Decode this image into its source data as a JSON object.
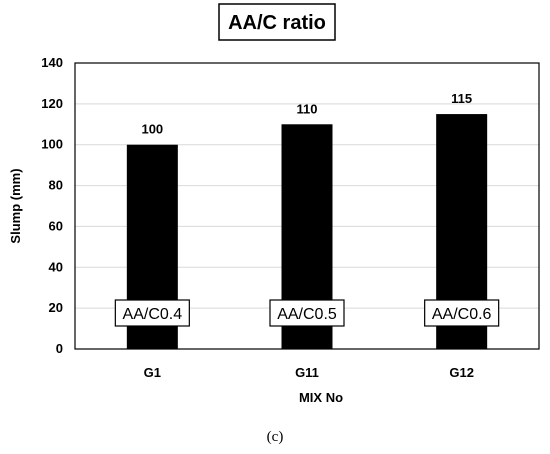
{
  "chart_data": {
    "type": "bar",
    "title": "AA/C ratio",
    "xlabel": "MIX No",
    "ylabel": "Slump (mm)",
    "ylim": [
      0,
      140
    ],
    "yticks": [
      0,
      20,
      40,
      60,
      80,
      100,
      120,
      140
    ],
    "categories": [
      "G1",
      "G11",
      "G12"
    ],
    "values": [
      100,
      110,
      115
    ],
    "data_labels": [
      "100",
      "110",
      "115"
    ],
    "bar_annotations": [
      "AA/C0.4",
      "AA/C0.5",
      "AA/C0.6"
    ],
    "bar_color": "#000000",
    "grid": true,
    "legend": "none"
  },
  "caption": "(c)"
}
